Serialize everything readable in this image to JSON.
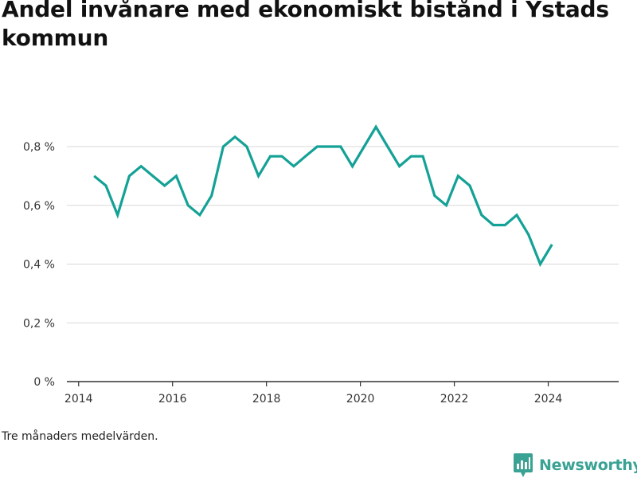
{
  "title": "Andel invånare med ekonomiskt bistånd i Ystads kommun",
  "footnote": "Tre månaders medelvärden.",
  "brand": {
    "name": "Newsworthy",
    "icon": "newsworthy-logo-icon",
    "color": "#3aa294"
  },
  "colors": {
    "line": "#14a196",
    "grid": "#d9d9d9",
    "axis": "#333333"
  },
  "chart_data": {
    "type": "line",
    "title": "Andel invånare med ekonomiskt bistånd i Ystads kommun",
    "xlabel": "",
    "ylabel": "",
    "xlim": [
      2013.75,
      2025.5
    ],
    "ylim": [
      0,
      0.8
    ],
    "x_ticks": [
      {
        "value": 2014,
        "label": "2014"
      },
      {
        "value": 2016,
        "label": "2016"
      },
      {
        "value": 2018,
        "label": "2018"
      },
      {
        "value": 2020,
        "label": "2020"
      },
      {
        "value": 2022,
        "label": "2022"
      },
      {
        "value": 2024,
        "label": "2024"
      }
    ],
    "y_ticks": [
      {
        "value": 0,
        "label": "0 %"
      },
      {
        "value": 0.2,
        "label": "0,2 %"
      },
      {
        "value": 0.4,
        "label": "0,4 %"
      },
      {
        "value": 0.6,
        "label": "0,6 %"
      },
      {
        "value": 0.8,
        "label": "0,8 %"
      }
    ],
    "grid": true,
    "legend": "none",
    "series": [
      {
        "color": "#14a196",
        "points": [
          [
            2014.33,
            0.7
          ],
          [
            2014.58,
            0.667
          ],
          [
            2014.83,
            0.567
          ],
          [
            2015.08,
            0.7
          ],
          [
            2015.33,
            0.733
          ],
          [
            2015.58,
            0.7
          ],
          [
            2015.83,
            0.667
          ],
          [
            2016.08,
            0.7
          ],
          [
            2016.33,
            0.6
          ],
          [
            2016.58,
            0.567
          ],
          [
            2016.83,
            0.633
          ],
          [
            2017.08,
            0.8
          ],
          [
            2017.33,
            0.833
          ],
          [
            2017.58,
            0.8
          ],
          [
            2017.83,
            0.7
          ],
          [
            2018.08,
            0.767
          ],
          [
            2018.33,
            0.767
          ],
          [
            2018.58,
            0.733
          ],
          [
            2018.83,
            0.767
          ],
          [
            2019.08,
            0.8
          ],
          [
            2019.33,
            0.8
          ],
          [
            2019.58,
            0.8
          ],
          [
            2019.83,
            0.733
          ],
          [
            2020.08,
            0.8
          ],
          [
            2020.33,
            0.867
          ],
          [
            2020.58,
            0.8
          ],
          [
            2020.83,
            0.733
          ],
          [
            2021.08,
            0.767
          ],
          [
            2021.33,
            0.767
          ],
          [
            2021.58,
            0.633
          ],
          [
            2021.83,
            0.6
          ],
          [
            2022.08,
            0.7
          ],
          [
            2022.33,
            0.667
          ],
          [
            2022.58,
            0.567
          ],
          [
            2022.83,
            0.533
          ],
          [
            2023.08,
            0.533
          ],
          [
            2023.33,
            0.567
          ],
          [
            2023.58,
            0.5
          ],
          [
            2023.83,
            0.4
          ],
          [
            2024.08,
            0.467
          ]
        ]
      }
    ]
  }
}
